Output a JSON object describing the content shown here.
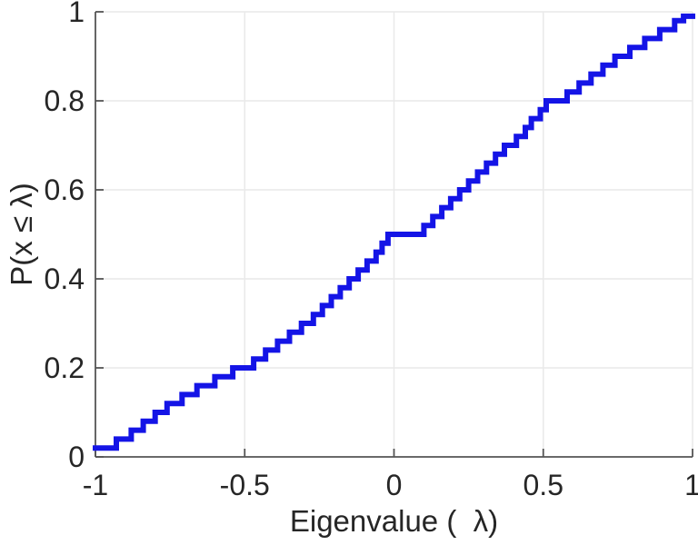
{
  "figure": {
    "xlabel": "Eigenvalue (  λ)",
    "ylabel": "P(x ≤ λ)"
  },
  "style": {
    "background": "#ffffff",
    "axis_color": "#555555",
    "grid_color": "#e9e9e9",
    "text_color": "#262626",
    "line_color": "#1414e6"
  },
  "chart_data": {
    "type": "line",
    "subtype": "empirical-cdf-staircase",
    "title": "",
    "xlabel": "Eigenvalue (λ)",
    "ylabel": "P(x ≤ λ)",
    "xlim": [
      -1,
      1
    ],
    "ylim": [
      0,
      1
    ],
    "x_ticks": [
      "-1",
      "-0.5",
      "0",
      "0.5",
      "1"
    ],
    "x_tick_values": [
      -1,
      -0.5,
      0,
      0.5,
      1
    ],
    "y_ticks": [
      "0",
      "0.2",
      "0.4",
      "0.6",
      "0.8",
      "1"
    ],
    "y_tick_values": [
      0,
      0.2,
      0.4,
      0.6,
      0.8,
      1
    ],
    "grid": true,
    "legend": null,
    "line_width": 6,
    "points": [
      [
        -1.0,
        0.02
      ],
      [
        -0.93,
        0.04
      ],
      [
        -0.88,
        0.06
      ],
      [
        -0.84,
        0.08
      ],
      [
        -0.8,
        0.1
      ],
      [
        -0.76,
        0.12
      ],
      [
        -0.71,
        0.14
      ],
      [
        -0.66,
        0.16
      ],
      [
        -0.6,
        0.18
      ],
      [
        -0.54,
        0.2
      ],
      [
        -0.47,
        0.22
      ],
      [
        -0.43,
        0.24
      ],
      [
        -0.39,
        0.26
      ],
      [
        -0.35,
        0.28
      ],
      [
        -0.31,
        0.3
      ],
      [
        -0.27,
        0.32
      ],
      [
        -0.24,
        0.34
      ],
      [
        -0.21,
        0.36
      ],
      [
        -0.18,
        0.38
      ],
      [
        -0.15,
        0.4
      ],
      [
        -0.12,
        0.42
      ],
      [
        -0.09,
        0.44
      ],
      [
        -0.06,
        0.46
      ],
      [
        -0.04,
        0.48
      ],
      [
        -0.02,
        0.5
      ],
      [
        0.1,
        0.52
      ],
      [
        0.13,
        0.54
      ],
      [
        0.16,
        0.56
      ],
      [
        0.19,
        0.58
      ],
      [
        0.22,
        0.6
      ],
      [
        0.25,
        0.62
      ],
      [
        0.28,
        0.64
      ],
      [
        0.31,
        0.66
      ],
      [
        0.34,
        0.68
      ],
      [
        0.37,
        0.7
      ],
      [
        0.41,
        0.72
      ],
      [
        0.44,
        0.74
      ],
      [
        0.46,
        0.76
      ],
      [
        0.49,
        0.78
      ],
      [
        0.51,
        0.8
      ],
      [
        0.58,
        0.82
      ],
      [
        0.62,
        0.84
      ],
      [
        0.66,
        0.86
      ],
      [
        0.7,
        0.88
      ],
      [
        0.74,
        0.9
      ],
      [
        0.79,
        0.92
      ],
      [
        0.84,
        0.94
      ],
      [
        0.89,
        0.96
      ],
      [
        0.94,
        0.98
      ],
      [
        0.97,
        0.99
      ]
    ]
  }
}
